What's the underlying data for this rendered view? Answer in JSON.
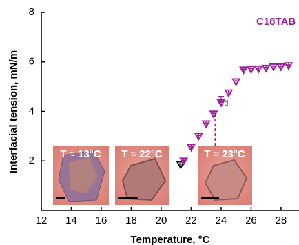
{
  "chart_data": {
    "type": "scatter",
    "x_label": "Temperature, °C",
    "y_label": "Interfacial tension, mN/m",
    "legend_label": "C18TAB",
    "legend_color": "#9b1f9b",
    "xlim": [
      12,
      29.2
    ],
    "xticks": [
      12,
      14,
      16,
      18,
      20,
      22,
      24,
      26,
      28
    ],
    "ylim": [
      0,
      8
    ],
    "yticks": [
      2,
      4,
      6,
      8
    ],
    "series": [
      {
        "color": "#000000",
        "x": [
          21.3
        ],
        "values": [
          1.85
        ],
        "errors": [
          0.12
        ]
      },
      {
        "color": "#9b1f9b",
        "x": [
          21.5,
          22.0,
          22.5,
          23.0,
          23.5,
          24.0,
          24.5,
          25.0,
          25.5,
          26.0,
          26.5,
          27.0,
          27.5,
          28.0,
          28.5
        ],
        "values": [
          2.0,
          2.55,
          3.0,
          3.5,
          3.9,
          4.35,
          4.75,
          5.2,
          5.68,
          5.7,
          5.72,
          5.75,
          5.8,
          5.8,
          5.85
        ],
        "errors": [
          0.1,
          0.1,
          0.1,
          0.1,
          0.12,
          0.1,
          0.1,
          0.1,
          0.1,
          0.1,
          0.1,
          0.1,
          0.1,
          0.1,
          0.1
        ]
      }
    ],
    "annotation": {
      "text": "T",
      "subscript": "d",
      "x": 23.6,
      "y_top": 3.9,
      "y_bottom": 2.2,
      "color": "#9b1f9b"
    },
    "insets": [
      {
        "label": "T ≈ 13°C"
      },
      {
        "label": "T ≈ 22°C"
      },
      {
        "label": "T ≈ 23°C"
      }
    ]
  }
}
